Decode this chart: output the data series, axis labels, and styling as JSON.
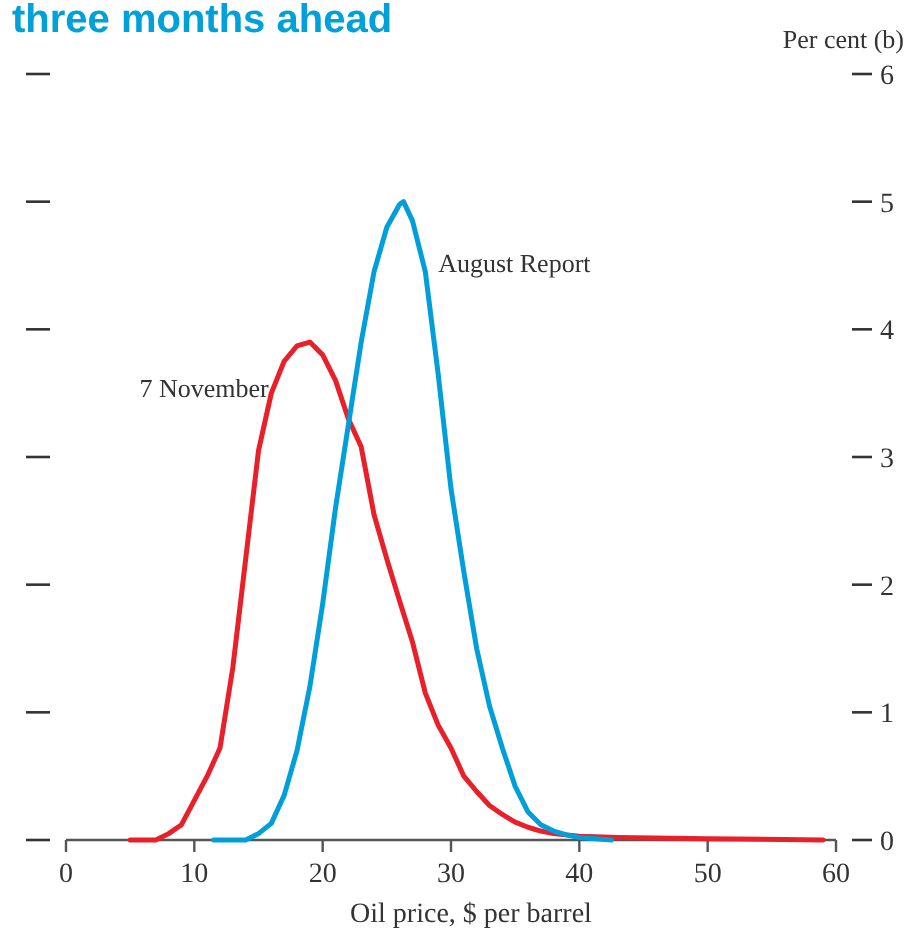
{
  "chart_data": {
    "type": "line",
    "title": "three months ahead",
    "xlabel": "Oil price, $ per barrel",
    "ylabel": "Per cent (b)",
    "xlim": [
      0,
      60
    ],
    "xticks": [
      0,
      10,
      20,
      30,
      40,
      50,
      60
    ],
    "ylim": [
      0,
      6
    ],
    "yticks": [
      0,
      1,
      2,
      3,
      4,
      5,
      6
    ],
    "grid": false,
    "marker": "none",
    "line_style": "solid",
    "series": [
      {
        "name": "7 November",
        "color": "#e8202a",
        "x": [
          5,
          7,
          8,
          9,
          10,
          11,
          12,
          13,
          14,
          15,
          16,
          17,
          18,
          19,
          20,
          21,
          22,
          23,
          24,
          25,
          26,
          27,
          28,
          29,
          30,
          31,
          32,
          33,
          34,
          35,
          36,
          37,
          38,
          40,
          43,
          50,
          59
        ],
        "values": [
          0,
          0,
          0.05,
          0.12,
          0.31,
          0.5,
          0.72,
          1.35,
          2.2,
          3.05,
          3.5,
          3.75,
          3.87,
          3.9,
          3.8,
          3.6,
          3.3,
          3.08,
          2.55,
          2.2,
          1.87,
          1.55,
          1.15,
          0.9,
          0.72,
          0.5,
          0.38,
          0.27,
          0.2,
          0.14,
          0.1,
          0.07,
          0.05,
          0.03,
          0.02,
          0.01,
          0
        ]
      },
      {
        "name": "August Report",
        "color": "#009fd9",
        "x": [
          11.5,
          14,
          15,
          16,
          17,
          18,
          19,
          20,
          21,
          22,
          23,
          24,
          25,
          26,
          26.3,
          27,
          28,
          29,
          30,
          31,
          32,
          33,
          34,
          35,
          36,
          37,
          38,
          39,
          40,
          42.5
        ],
        "values": [
          0,
          0,
          0.05,
          0.13,
          0.35,
          0.7,
          1.2,
          1.85,
          2.6,
          3.25,
          3.9,
          4.45,
          4.8,
          4.98,
          5.0,
          4.85,
          4.45,
          3.65,
          2.75,
          2.1,
          1.5,
          1.05,
          0.72,
          0.42,
          0.22,
          0.12,
          0.07,
          0.04,
          0.02,
          0
        ]
      }
    ]
  }
}
